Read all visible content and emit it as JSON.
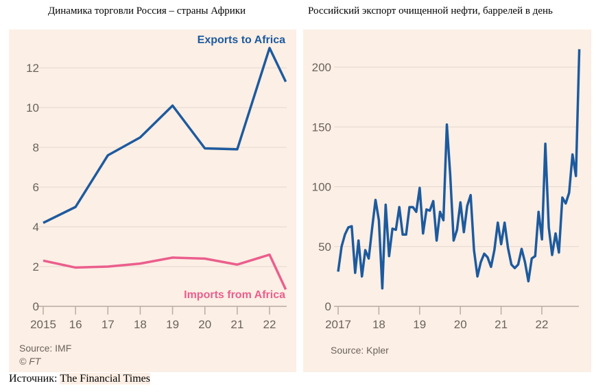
{
  "titles": {
    "left": "Динамика торговли Россия – страны Африки",
    "right": "Российский экспорт очищенной нефти, баррелей в день"
  },
  "footer": {
    "label": "Источник:",
    "source": "The Financial Times"
  },
  "chart_data": [
    {
      "type": "line",
      "title": "Динамика торговли Россия – страны Африки",
      "x": [
        2015,
        2016,
        2017,
        2018,
        2019,
        2020,
        2021,
        2022,
        2022.5
      ],
      "xticks": [
        2015,
        2016,
        2017,
        2018,
        2019,
        2020,
        2021,
        2022
      ],
      "xtick_labels": [
        "2015",
        "16",
        "17",
        "18",
        "19",
        "20",
        "21",
        "22"
      ],
      "yticks": [
        0,
        2,
        4,
        6,
        8,
        10,
        12
      ],
      "ylim": [
        0,
        12.6
      ],
      "series": [
        {
          "name": "Exports to Africa",
          "color": "#1d5a9e",
          "values": [
            4.2,
            5.0,
            7.6,
            8.5,
            10.1,
            7.95,
            7.9,
            13.0,
            11.3
          ]
        },
        {
          "name": "Imports from Africa",
          "color": "#eb5e8d",
          "values": [
            2.3,
            1.95,
            2.0,
            2.15,
            2.45,
            2.4,
            2.1,
            2.6,
            0.85
          ]
        }
      ],
      "source": "Source: IMF",
      "credit": "© FT"
    },
    {
      "type": "line",
      "title": "Российский экспорт очищенной нефти, баррелей в день",
      "xstart": 2017,
      "xend": 2022.92,
      "xticks": [
        2017,
        2018,
        2019,
        2020,
        2021,
        2022
      ],
      "xtick_labels": [
        "2017",
        "18",
        "19",
        "20",
        "21",
        "22"
      ],
      "yticks": [
        0,
        50,
        100,
        150,
        200
      ],
      "ylim": [
        0,
        215
      ],
      "series": [
        {
          "name": "Refined oil exports",
          "color": "#1d5a9e",
          "values": [
            29,
            50,
            60,
            66,
            67,
            28,
            55,
            25,
            47,
            40,
            65,
            89,
            72,
            15,
            85,
            42,
            65,
            64,
            83,
            60,
            60,
            83,
            83,
            79,
            99,
            61,
            81,
            80,
            88,
            55,
            79,
            72,
            152,
            110,
            55,
            64,
            87,
            62,
            84,
            93,
            47,
            25,
            37,
            44,
            41,
            33,
            47,
            70,
            52,
            70,
            49,
            35,
            32,
            35,
            48,
            37,
            21,
            40,
            42,
            79,
            56,
            136,
            66,
            43,
            61,
            45,
            91,
            86,
            95,
            127,
            109,
            215
          ]
        }
      ],
      "source": "Source: Kpler"
    }
  ]
}
